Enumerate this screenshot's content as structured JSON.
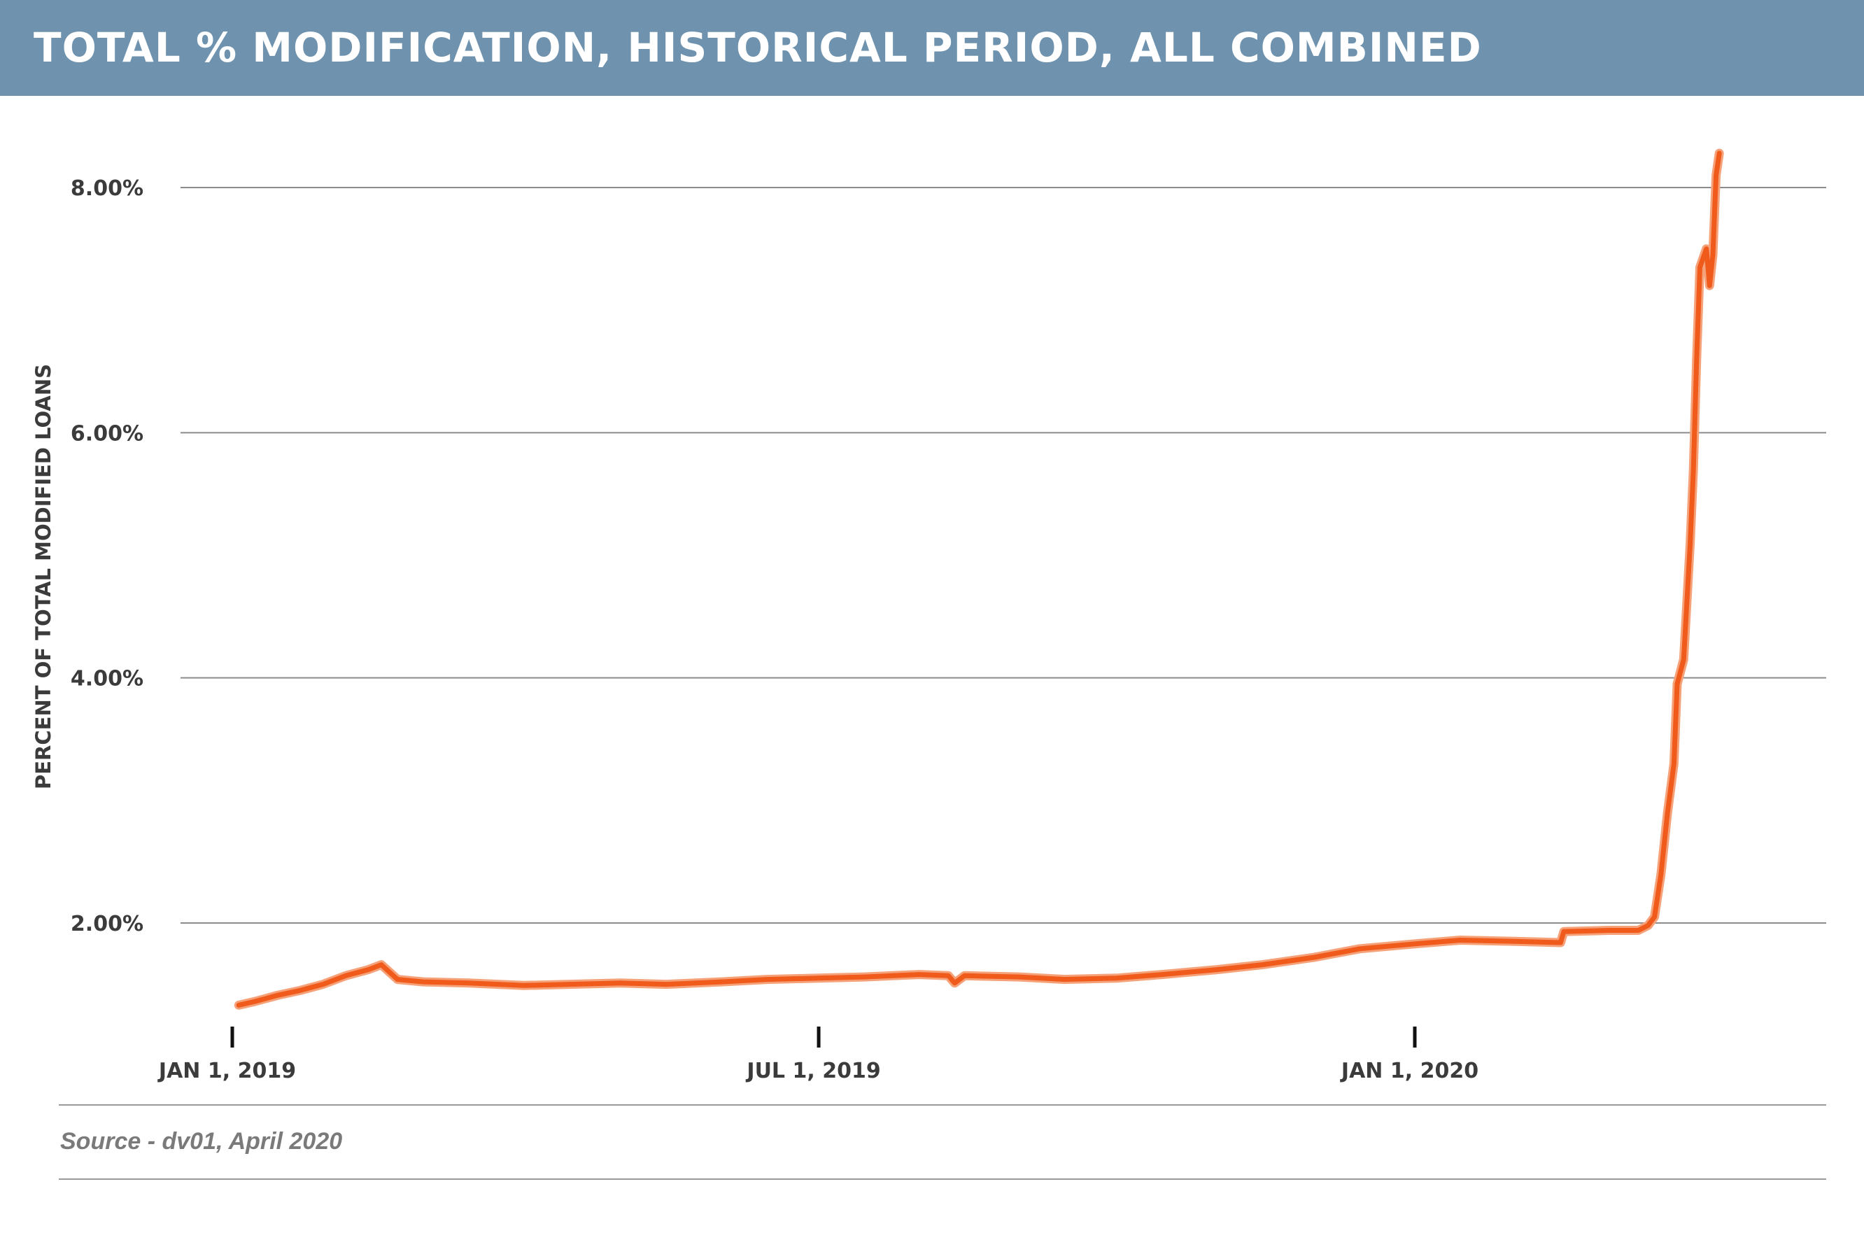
{
  "header": {
    "title": "TOTAL % MODIFICATION, HISTORICAL PERIOD, ALL COMBINED",
    "background_color": "#6f93ae"
  },
  "source": "Source - dv01, April 2020",
  "chart_data": {
    "type": "line",
    "title": "TOTAL % MODIFICATION, HISTORICAL PERIOD, ALL COMBINED",
    "xlabel": "",
    "ylabel": "PERCENT OF TOTAL MODIFIED LOANS",
    "ylim": [
      0.85,
      8.5
    ],
    "xlim": [
      "2018-12-25",
      "2020-04-30"
    ],
    "y_ticks": [
      {
        "value": 2.0,
        "label": "2.00%"
      },
      {
        "value": 4.0,
        "label": "4.00%"
      },
      {
        "value": 6.0,
        "label": "6.00%"
      },
      {
        "value": 8.0,
        "label": "8.00%"
      }
    ],
    "x_ticks": [
      {
        "date": "2019-01-01",
        "label": "JAN 1, 2019"
      },
      {
        "date": "2019-07-01",
        "label": "JUL 1, 2019"
      },
      {
        "date": "2020-01-01",
        "label": "JAN 1, 2020"
      }
    ],
    "grid": true,
    "line_color": "#f05a1a",
    "series": [
      {
        "points": [
          [
            "2019-01-03",
            1.33
          ],
          [
            "2019-01-08",
            1.36
          ],
          [
            "2019-01-15",
            1.41
          ],
          [
            "2019-01-22",
            1.45
          ],
          [
            "2019-01-29",
            1.5
          ],
          [
            "2019-02-05",
            1.57
          ],
          [
            "2019-02-12",
            1.62
          ],
          [
            "2019-02-16",
            1.66
          ],
          [
            "2019-02-21",
            1.54
          ],
          [
            "2019-03-01",
            1.52
          ],
          [
            "2019-03-15",
            1.51
          ],
          [
            "2019-04-01",
            1.49
          ],
          [
            "2019-04-15",
            1.5
          ],
          [
            "2019-05-01",
            1.51
          ],
          [
            "2019-05-15",
            1.5
          ],
          [
            "2019-06-01",
            1.52
          ],
          [
            "2019-06-15",
            1.54
          ],
          [
            "2019-07-01",
            1.55
          ],
          [
            "2019-07-15",
            1.56
          ],
          [
            "2019-08-01",
            1.58
          ],
          [
            "2019-08-10",
            1.57
          ],
          [
            "2019-08-12",
            1.51
          ],
          [
            "2019-08-15",
            1.57
          ],
          [
            "2019-09-01",
            1.56
          ],
          [
            "2019-09-15",
            1.54
          ],
          [
            "2019-10-01",
            1.55
          ],
          [
            "2019-10-15",
            1.58
          ],
          [
            "2019-11-01",
            1.62
          ],
          [
            "2019-11-15",
            1.66
          ],
          [
            "2019-12-01",
            1.72
          ],
          [
            "2019-12-15",
            1.79
          ],
          [
            "2020-01-01",
            1.83
          ],
          [
            "2020-01-15",
            1.86
          ],
          [
            "2020-02-01",
            1.85
          ],
          [
            "2020-02-15",
            1.84
          ],
          [
            "2020-02-16",
            1.93
          ],
          [
            "2020-03-01",
            1.94
          ],
          [
            "2020-03-10",
            1.94
          ],
          [
            "2020-03-13",
            1.98
          ],
          [
            "2020-03-15",
            2.05
          ],
          [
            "2020-03-17",
            2.4
          ],
          [
            "2020-03-19",
            2.9
          ],
          [
            "2020-03-21",
            3.3
          ],
          [
            "2020-03-22",
            3.95
          ],
          [
            "2020-03-24",
            4.15
          ],
          [
            "2020-03-26",
            5.1
          ],
          [
            "2020-03-27",
            5.7
          ],
          [
            "2020-03-28",
            6.6
          ],
          [
            "2020-03-29",
            7.35
          ],
          [
            "2020-03-31",
            7.5
          ],
          [
            "2020-04-01",
            7.2
          ],
          [
            "2020-04-02",
            7.45
          ],
          [
            "2020-04-03",
            8.1
          ],
          [
            "2020-04-04",
            8.28
          ]
        ]
      }
    ]
  }
}
